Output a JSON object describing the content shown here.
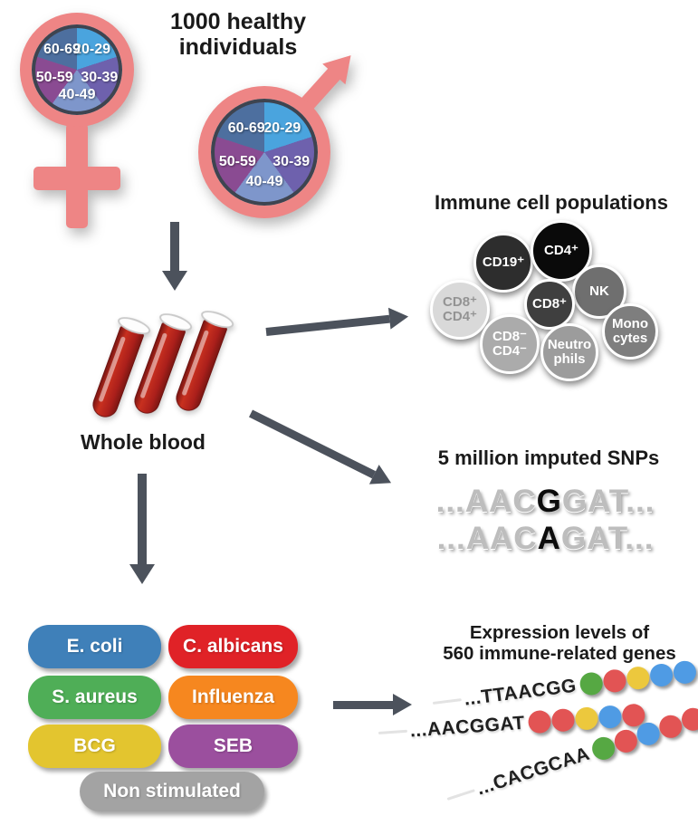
{
  "cohort": {
    "title_line1": "1000 healthy",
    "title_line2": "individuals",
    "age_groups": [
      "20-29",
      "30-39",
      "40-49",
      "50-59",
      "60-69"
    ]
  },
  "blood": {
    "label": "Whole blood"
  },
  "immune": {
    "title": "Immune cell populations",
    "cells": [
      {
        "label": "CD19⁺",
        "bg": "#2d2d2d"
      },
      {
        "label": "CD4⁺",
        "bg": "#0a0a0a"
      },
      {
        "line1": "CD8⁺",
        "line2": "CD4⁺",
        "bg": "#d9d9d9"
      },
      {
        "label": "NK",
        "bg": "#6f6f6f"
      },
      {
        "label": "CD8⁺",
        "bg": "#3f3f3f"
      },
      {
        "line1": "CD8⁻",
        "line2": "CD4⁻",
        "bg": "#ababab"
      },
      {
        "line1": "Neutro",
        "line2": "phils",
        "bg": "#9c9c9c"
      },
      {
        "line1": "Mono",
        "line2": "cytes",
        "bg": "#7e7e7e"
      }
    ]
  },
  "snps": {
    "title": "5 million imputed SNPs",
    "seq1": {
      "pre": "...AAC",
      "snp": "G",
      "post": "GAT..."
    },
    "seq2": {
      "pre": "...AAC",
      "snp": "A",
      "post": "GAT..."
    }
  },
  "stimuli": {
    "items": [
      {
        "label": "E. coli",
        "color": "#3f80b9"
      },
      {
        "label": "C. albicans",
        "color": "#e02227"
      },
      {
        "label": "S. aureus",
        "color": "#4fae57"
      },
      {
        "label": "Influenza",
        "color": "#f6871f"
      },
      {
        "label": "BCG",
        "color": "#e3c52f"
      },
      {
        "label": "SEB",
        "color": "#9b4f9e"
      },
      {
        "label": "Non stimulated",
        "color": "#a3a3a3"
      }
    ]
  },
  "expression": {
    "title_line1": "Expression levels of",
    "title_line2": "560 immune-related genes",
    "rows": [
      {
        "seq": "...TTAACGG",
        "dots": [
          "#56a843",
          "#e25454",
          "#ecc83d",
          "#4f9be4",
          "#4f9be4"
        ]
      },
      {
        "seq": "...AACGGAT",
        "dots": [
          "#e25454",
          "#e25454",
          "#ecc83d",
          "#4f9be4",
          "#e25454"
        ]
      },
      {
        "seq": "...CACGCAA",
        "dots": [
          "#56a843",
          "#e25454",
          "#4f9be4",
          "#e25454",
          "#e25454"
        ]
      }
    ]
  },
  "colors": {
    "gender_pink": "#ee8585",
    "arrow_gray": "#4c525c",
    "blood_red": "#b32420",
    "age_20_29": "#4aa4de",
    "age_30_39": "#6e61ad",
    "age_40_49": "#7e96cb",
    "age_50_59": "#8a4b92",
    "age_60_69": "#4d6f9f"
  }
}
